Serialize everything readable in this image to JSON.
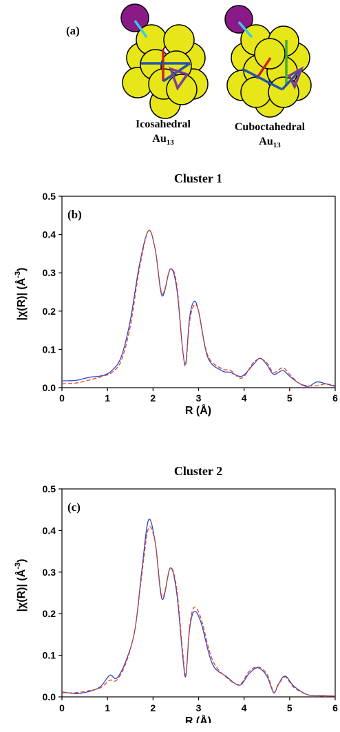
{
  "panel_a": {
    "label": "(a)",
    "left_caption": {
      "main": "Icosahedral",
      "sub_base": "Au",
      "sub_index": "13"
    },
    "right_caption": {
      "main": "Cuboctahedral",
      "sub_base": "Au",
      "sub_index": "13"
    },
    "colors": {
      "gold": "#e6e619",
      "dopant": "#8b1a89",
      "bond_cyan": "#33ccee",
      "bond_red": "#cc2222",
      "bond_blue": "#2255aa",
      "bond_purple": "#7a3d99",
      "bond_green": "#44aa33"
    }
  },
  "chart_data": [
    {
      "type": "line",
      "title": "Cluster 1",
      "panel_label": "(b)",
      "xlabel": "R (Å)",
      "ylabel_main": "|χ(R)| (Å",
      "ylabel_sup": "-3",
      "ylabel_close": ")",
      "xlim": [
        0,
        6
      ],
      "ylim": [
        0,
        0.5
      ],
      "xticks": [
        "0",
        "1",
        "2",
        "3",
        "4",
        "5",
        "6"
      ],
      "yticks": [
        "0.0",
        "0.1",
        "0.2",
        "0.3",
        "0.4",
        "0.5"
      ],
      "series": [
        {
          "color": "#3344cc",
          "dash": "solid",
          "x": [
            0,
            0.3,
            0.6,
            0.9,
            1.1,
            1.3,
            1.5,
            1.7,
            1.9,
            2.05,
            2.2,
            2.38,
            2.52,
            2.65,
            2.72,
            2.8,
            2.9,
            3.0,
            3.2,
            3.5,
            3.7,
            3.95,
            4.2,
            4.35,
            4.5,
            4.65,
            4.85,
            5.0,
            5.2,
            5.4,
            5.6,
            5.8,
            6.0
          ],
          "y": [
            0.018,
            0.019,
            0.027,
            0.032,
            0.045,
            0.08,
            0.175,
            0.32,
            0.41,
            0.36,
            0.24,
            0.31,
            0.26,
            0.1,
            0.065,
            0.18,
            0.225,
            0.2,
            0.08,
            0.045,
            0.04,
            0.03,
            0.06,
            0.077,
            0.06,
            0.035,
            0.045,
            0.03,
            0.012,
            0.003,
            0.015,
            0.01,
            0.003
          ]
        },
        {
          "color": "#dd4422",
          "dash": "dashed",
          "x": [
            0,
            0.3,
            0.6,
            0.9,
            1.1,
            1.3,
            1.5,
            1.7,
            1.9,
            2.05,
            2.2,
            2.38,
            2.52,
            2.65,
            2.72,
            2.8,
            2.9,
            3.0,
            3.2,
            3.5,
            3.7,
            3.95,
            4.2,
            4.35,
            4.5,
            4.65,
            4.85,
            5.0,
            5.2,
            5.4,
            5.6,
            5.8,
            6.0
          ],
          "y": [
            0.01,
            0.012,
            0.02,
            0.03,
            0.04,
            0.07,
            0.16,
            0.31,
            0.41,
            0.36,
            0.245,
            0.31,
            0.27,
            0.1,
            0.06,
            0.17,
            0.215,
            0.2,
            0.085,
            0.05,
            0.045,
            0.025,
            0.065,
            0.075,
            0.065,
            0.04,
            0.052,
            0.035,
            0.012,
            0.005,
            0.005,
            0.01,
            0.005
          ]
        }
      ]
    },
    {
      "type": "line",
      "title": "Cluster 2",
      "panel_label": "(c)",
      "xlabel": "R (Å)",
      "ylabel_main": "|χ(R)| (Å",
      "ylabel_sup": "-3",
      "ylabel_close": ")",
      "xlim": [
        0,
        6
      ],
      "ylim": [
        0,
        0.5
      ],
      "xticks": [
        "0",
        "1",
        "2",
        "3",
        "4",
        "5",
        "6"
      ],
      "yticks": [
        "0.0",
        "0.1",
        "0.2",
        "0.3",
        "0.4",
        "0.5"
      ],
      "series": [
        {
          "color": "#3344cc",
          "dash": "solid",
          "x": [
            0,
            0.3,
            0.6,
            0.85,
            1.05,
            1.2,
            1.4,
            1.6,
            1.75,
            1.9,
            2.05,
            2.2,
            2.38,
            2.52,
            2.65,
            2.72,
            2.8,
            2.9,
            3.05,
            3.3,
            3.6,
            3.9,
            4.1,
            4.3,
            4.5,
            4.65,
            4.75,
            4.9,
            5.1,
            5.4,
            5.7,
            6.0
          ],
          "y": [
            0.012,
            0.008,
            0.013,
            0.025,
            0.052,
            0.045,
            0.085,
            0.16,
            0.3,
            0.425,
            0.37,
            0.235,
            0.31,
            0.25,
            0.1,
            0.05,
            0.16,
            0.205,
            0.18,
            0.08,
            0.05,
            0.028,
            0.055,
            0.07,
            0.05,
            0.01,
            0.03,
            0.05,
            0.025,
            0.005,
            0.003,
            0.002
          ]
        },
        {
          "color": "#dd4422",
          "dash": "dashed",
          "x": [
            0,
            0.3,
            0.6,
            0.85,
            1.05,
            1.2,
            1.4,
            1.6,
            1.75,
            1.9,
            2.05,
            2.2,
            2.38,
            2.52,
            2.65,
            2.72,
            2.8,
            2.9,
            3.05,
            3.3,
            3.6,
            3.9,
            4.1,
            4.3,
            4.5,
            4.65,
            4.75,
            4.9,
            5.1,
            5.4,
            5.7,
            6.0
          ],
          "y": [
            0.01,
            0.01,
            0.015,
            0.022,
            0.04,
            0.04,
            0.08,
            0.16,
            0.29,
            0.405,
            0.37,
            0.24,
            0.31,
            0.26,
            0.11,
            0.055,
            0.165,
            0.215,
            0.19,
            0.09,
            0.048,
            0.03,
            0.06,
            0.072,
            0.055,
            0.012,
            0.028,
            0.048,
            0.022,
            0.005,
            0.002,
            0.002
          ]
        }
      ]
    }
  ]
}
